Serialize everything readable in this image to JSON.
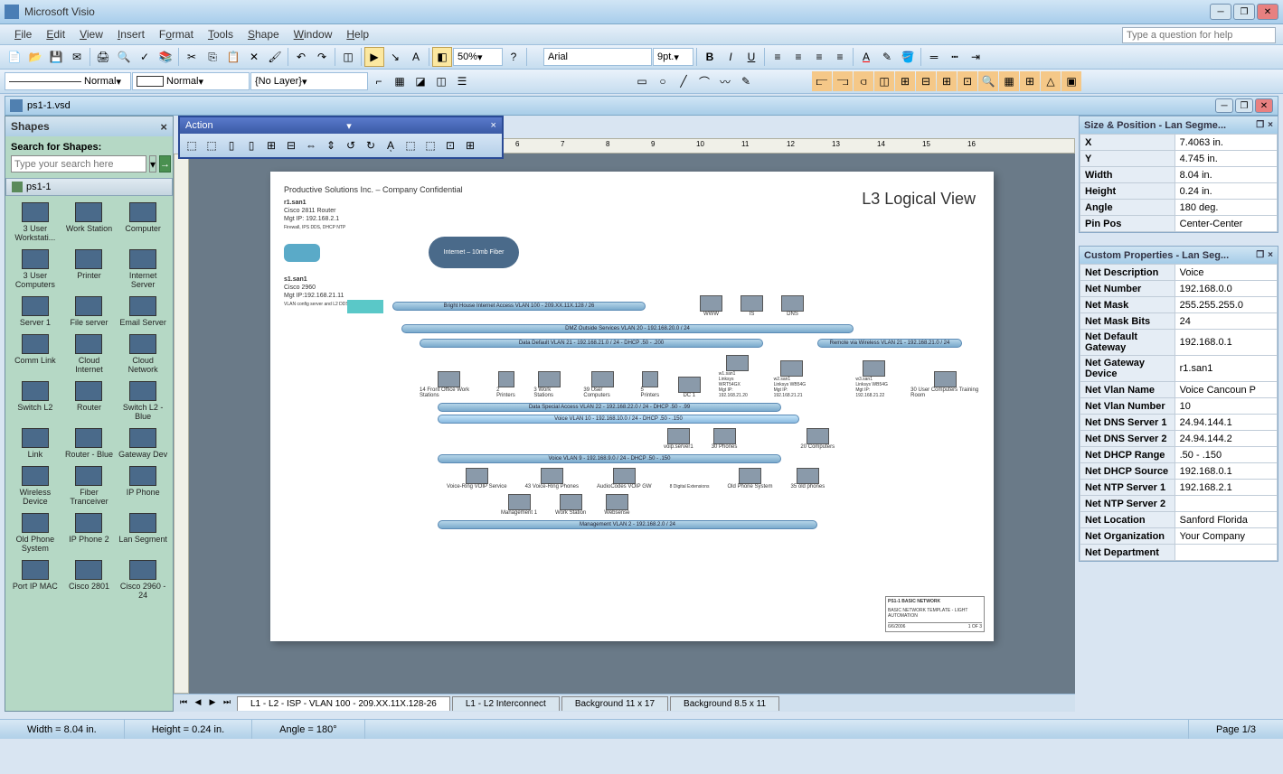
{
  "app": {
    "title": "Microsoft Visio",
    "doc_title": "ps1-1.vsd"
  },
  "menu": {
    "file": "File",
    "edit": "Edit",
    "view": "View",
    "insert": "Insert",
    "format": "Format",
    "tools": "Tools",
    "shape": "Shape",
    "window": "Window",
    "help": "Help"
  },
  "help_placeholder": "Type a question for help",
  "toolbar": {
    "zoom": "50%",
    "font": "Arial",
    "fontsize": "9pt.",
    "line_style": "Normal",
    "fill_style": "Normal",
    "layer": "{No Layer}"
  },
  "action_toolbar": {
    "title": "Action"
  },
  "shapes": {
    "title": "Shapes",
    "search_label": "Search for Shapes:",
    "search_placeholder": "Type your search here",
    "stencil": "ps1-1",
    "items": [
      "3 User Workstati...",
      "Work Station",
      "Computer",
      "3 User Computers",
      "Printer",
      "Internet Server",
      "Server 1",
      "File server",
      "Email Server",
      "Comm Link",
      "Cloud Internet",
      "Cloud Network",
      "Switch L2",
      "Router",
      "Switch L2 - Blue",
      "Link",
      "Router - Blue",
      "Gateway Dev",
      "Wireless Device",
      "Fiber Tranceiver",
      "IP Phone",
      "Old Phone System",
      "IP Phone 2",
      "Lan Segment",
      "Port IP MAC",
      "Cisco 2801",
      "Cisco 2960 - 24"
    ]
  },
  "canvas": {
    "company_header": "Productive Solutions Inc. – Company Confidential",
    "page_title": "L3 Logical View",
    "r1": {
      "name": "r1.san1",
      "model": "Cisco 2811 Router",
      "ip": "Mgt IP: 192.168.2.1",
      "note": "Firewall, IPS DDS, DHCP NTP"
    },
    "s1": {
      "name": "s1.san1",
      "model": "Cisco 2960",
      "ip": "Mgt IP:192.168.21.11",
      "note": "VLAN config server and L2 DDS"
    },
    "cloud": "Internet – 10mb Fiber",
    "vlan_internet": "Bright House Internet Access VLAN 100 - 209.XX.11X.128 / 26",
    "vlan_dmz": "DMZ Outside Services VLAN 20 - 192.168.20.0 / 24",
    "vlan_data_default": "Data Default VLAN 21 - 192.168.21.0 / 24 - DHCP .50 - .200",
    "vlan_remote": "Remote via Wireless VLAN 21 - 192.168.21.0 / 24",
    "vlan_data_special": "Data Special Access VLAN 22 - 192.168.22.0 / 24 - DHCP .50 - .99",
    "vlan_voice": "Voice VLAN 10 - 192.168.10.0 / 24 - DHCP .50 - .150",
    "vlan_voice2": "Voice VLAN 9 - 192.168.9.0 / 24 - DHCP .50 - .150",
    "vlan_mgmt": "Management VLAN 2 - 192.168.2.0 / 24",
    "devices": {
      "servers": [
        "WWW",
        "IS",
        "DNS"
      ],
      "front_office": "14 Front Office Work Stations",
      "printers": "2 Printers",
      "workstations": "3 Work Stations",
      "computers39": "39 User Computers",
      "printers5": "5 Printers",
      "dc1": "DC 1",
      "w1": "w1.san1\nLinksys WRT54GX\nMgt IP: 192.168.21.20",
      "w2": "w2.san1\nLinksys WB54G\nMgt IP: 192.168.21.21",
      "w3": "w3.san1\nLinksys WB54G\nMgt IP: 192.168.21.22",
      "training": "30 User Computers Training Room",
      "voip_server": "voip.server1",
      "phones30": "30 Phones",
      "computers20": "20 Computers",
      "voice_ring": "Voice-Ring VOIP Service",
      "phones43": "43 Voice-Ring Phones",
      "audiocodes": "AudioCodes VOIP GW",
      "digital_ext": "8 Digital Extensions",
      "old_phone": "Old Phone System",
      "phones35": "35 old phones",
      "mgmt1": "Management 1",
      "workstation": "Work Station",
      "websense": "Websense"
    },
    "titleblock": {
      "name": "PS1-1 BASIC NETWORK",
      "template": "BASIC NETWORK TEMPLATE - LIGHT AUTOMATION",
      "date": "6/6/2006",
      "page": "1 OF 3"
    }
  },
  "sheet_tabs": {
    "t1": "L1 - L2 - ISP -  VLAN 100 - 209.XX.11X.128-26",
    "t2": "L1 - L2 Interconnect",
    "t3": "Background 11 x 17",
    "t4": "Background 8.5 x 11"
  },
  "size_pos": {
    "title": "Size & Position - Lan Segme...",
    "x_label": "X",
    "x": "7.4063 in.",
    "y_label": "Y",
    "y": "4.745 in.",
    "width_label": "Width",
    "width": "8.04 in.",
    "height_label": "Height",
    "height": "0.24 in.",
    "angle_label": "Angle",
    "angle": "180 deg.",
    "pinpos_label": "Pin Pos",
    "pinpos": "Center-Center"
  },
  "custom_props": {
    "title": "Custom Properties - Lan Seg...",
    "rows": [
      {
        "k": "Net Description",
        "v": "Voice"
      },
      {
        "k": "Net Number",
        "v": "192.168.0.0"
      },
      {
        "k": "Net Mask",
        "v": "255.255.255.0"
      },
      {
        "k": "Net Mask Bits",
        "v": "24"
      },
      {
        "k": "Net Default Gateway",
        "v": "192.168.0.1"
      },
      {
        "k": "Net Gateway Device",
        "v": "r1.san1"
      },
      {
        "k": "Net Vlan Name",
        "v": "Voice Cancoun P"
      },
      {
        "k": "Net Vlan Number",
        "v": "10"
      },
      {
        "k": "Net DNS Server 1",
        "v": "24.94.144.1"
      },
      {
        "k": "Net DNS Server 2",
        "v": "24.94.144.2"
      },
      {
        "k": "Net DHCP Range",
        "v": ".50 - .150"
      },
      {
        "k": "Net DHCP Source",
        "v": "192.168.0.1"
      },
      {
        "k": "Net NTP Server 1",
        "v": "192.168.2.1"
      },
      {
        "k": "Net NTP Server 2",
        "v": ""
      },
      {
        "k": "Net Location",
        "v": "Sanford Florida"
      },
      {
        "k": "Net Organization",
        "v": "Your Company"
      },
      {
        "k": "Net Department",
        "v": ""
      }
    ]
  },
  "status": {
    "width": "Width = 8.04 in.",
    "height": "Height = 0.24 in.",
    "angle": "Angle = 180°",
    "page": "Page 1/3"
  }
}
